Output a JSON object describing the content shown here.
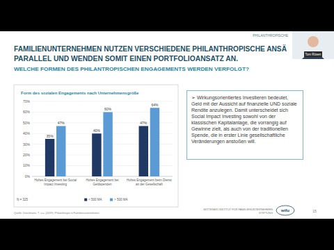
{
  "slide": {
    "header": "PHILANTHROPISCHE",
    "title": [
      "FAMILIENUNTERNEHMEN NUTZEN VERSCHIEDENE PHILANTHROPISCHE ANSÄ",
      "PARALLEL UND WENDEN SOMIT EINEN PORTFOLIOANSATZ AN."
    ],
    "subtitle": "WELCHE FORMEN DES PHILANTROPISCHEN ENGAGEMENTS WERDEN VERFOLGT?",
    "note": "N = 325",
    "textbox": "➢ Wirkungsorientiertes Investieren bedeutet, Geld mit der Aussicht auf finanzielle UND soziale Rendite anzulegen. Damit unterscheidet sich Social Impact Investing sowohl von der klassischen Kapitalanlage, die vorrangig auf Gewinne zielt, als auch von der traditionellen Spende, die in erster Linie gesellschaftliche Veränderungen anstoßen will.",
    "source": "Quelle: Dieckmann, T. u.a. (2019): Philanthropie in Familienunternehmen",
    "footer": [
      "WITTENER INSTITUT FÜR FAMILIENUNTERNEHMEN",
      "STIFTUNG"
    ],
    "logo": "wifu",
    "page": "15",
    "speaker": "Tom Rüsen"
  },
  "chart_data": {
    "type": "bar",
    "title": "Form des sozialen Engagements nach Unternehmensgröße",
    "categories": [
      "Hohes Engagement bei Social Impact Investing",
      "Hohes Engagement bei Geldspenden",
      "Hohes Engagement beim Dienst an der Gesellschaft"
    ],
    "series": [
      {
        "name": "< 500 MA",
        "color": "#1f3864",
        "values": [
          35,
          40,
          47
        ],
        "value_labels": [
          "35%",
          "40%",
          "47%"
        ]
      },
      {
        "name": "> 500 MA",
        "color": "#5b9bd5",
        "values": [
          47,
          60,
          64
        ],
        "value_labels": [
          "47%",
          "60%",
          "64%"
        ]
      }
    ],
    "ylim": [
      0,
      70
    ],
    "yticks": [
      {
        "value": 0,
        "label": "0%"
      },
      {
        "value": 10,
        "label": "10%"
      },
      {
        "value": 20,
        "label": "20%"
      },
      {
        "value": 30,
        "label": "30%"
      },
      {
        "value": 40,
        "label": "40%"
      },
      {
        "value": 50,
        "label": "50%"
      },
      {
        "value": 60,
        "label": "60%"
      },
      {
        "value": 70,
        "label": "70%"
      }
    ],
    "grid": true,
    "legend": "bottom",
    "data_labels": true
  }
}
